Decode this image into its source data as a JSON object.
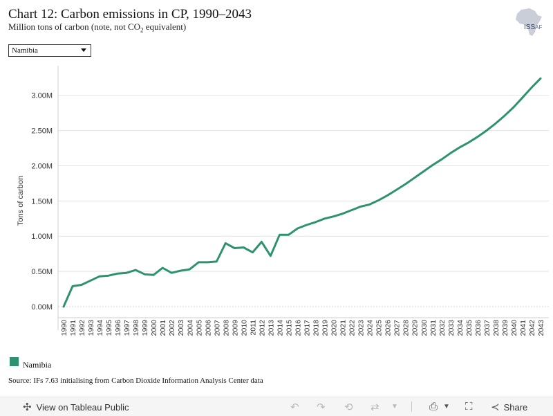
{
  "header": {
    "title": "Chart 12: Carbon emissions in CP, 1990–2043",
    "subtitle_pre": "Million tons of carbon (note, not CO",
    "subtitle_sub": "2",
    "subtitle_post": " equivalent)"
  },
  "logo": {
    "text": "ISS",
    "suffix": "AF"
  },
  "filter": {
    "selected": "Namibia"
  },
  "legend": {
    "label": "Namibia"
  },
  "source": "Source: IFs 7.63 initialising from Carbon Dioxide Information Analysis Center data",
  "toolbar": {
    "view_label": "View on Tableau Public",
    "share_label": "Share"
  },
  "chart_data": {
    "type": "line",
    "ylabel": "Tons of carbon",
    "yticks": [
      "0.00M",
      "0.50M",
      "1.00M",
      "1.50M",
      "2.00M",
      "2.50M",
      "3.00M"
    ],
    "ylim": [
      0,
      3.4
    ],
    "grid": true,
    "legend_position": "bottom-left",
    "x": [
      "1990",
      "1991",
      "1992",
      "1993",
      "1994",
      "1995",
      "1996",
      "1997",
      "1998",
      "1999",
      "2000",
      "2001",
      "2002",
      "2003",
      "2004",
      "2005",
      "2006",
      "2007",
      "2008",
      "2009",
      "2010",
      "2011",
      "2012",
      "2013",
      "2014",
      "2015",
      "2016",
      "2017",
      "2018",
      "2019",
      "2020",
      "2021",
      "2022",
      "2023",
      "2024",
      "2025",
      "2026",
      "2027",
      "2028",
      "2029",
      "2030",
      "2031",
      "2032",
      "2033",
      "2034",
      "2035",
      "2036",
      "2037",
      "2038",
      "2039",
      "2040",
      "2041",
      "2042",
      "2043"
    ],
    "series": [
      {
        "name": "Namibia",
        "color": "#2e9270",
        "values": [
          0.0,
          0.29,
          0.31,
          0.37,
          0.43,
          0.44,
          0.47,
          0.48,
          0.52,
          0.46,
          0.45,
          0.55,
          0.48,
          0.51,
          0.53,
          0.63,
          0.63,
          0.64,
          0.9,
          0.83,
          0.84,
          0.77,
          0.92,
          0.72,
          1.02,
          1.02,
          1.11,
          1.16,
          1.2,
          1.25,
          1.28,
          1.32,
          1.37,
          1.42,
          1.45,
          1.51,
          1.58,
          1.66,
          1.74,
          1.83,
          1.92,
          2.01,
          2.09,
          2.18,
          2.26,
          2.33,
          2.41,
          2.5,
          2.6,
          2.71,
          2.83,
          2.97,
          3.11,
          3.24
        ]
      }
    ]
  }
}
